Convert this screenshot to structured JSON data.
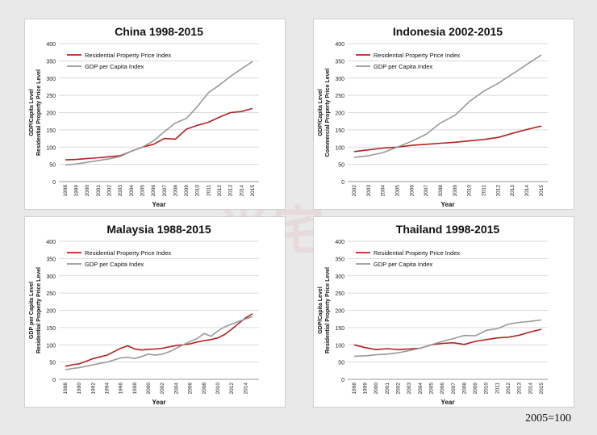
{
  "footnote": "2005=100",
  "watermark": "米宅",
  "colors": {
    "residential": "#b22222",
    "gdp": "#9a9a9a",
    "grid": "#cfcfcf"
  },
  "chart_data": [
    {
      "type": "line",
      "title": "China 1998-2015",
      "xlabel": "Year",
      "ylabel": [
        "GDP/Capita Level",
        "Residential Property Price Level"
      ],
      "x": [
        "1998",
        "1999",
        "2000",
        "2001",
        "2002",
        "2003",
        "2004",
        "2005",
        "2006",
        "2007",
        "2008",
        "2009",
        "2010",
        "2011",
        "2012",
        "2013",
        "2014",
        "2015"
      ],
      "ylim": [
        0,
        400
      ],
      "yticks": [
        0,
        50,
        100,
        150,
        200,
        250,
        300,
        350,
        400
      ],
      "legend": "top-left",
      "series": [
        {
          "name": "Residential Property Price Index",
          "color": "#b22222",
          "values": [
            63,
            64,
            67,
            69,
            72,
            75,
            88,
            100,
            108,
            125,
            123,
            152,
            163,
            172,
            187,
            200,
            203,
            212
          ]
        },
        {
          "name": "GDP per Capita Index",
          "color": "#9a9a9a",
          "values": [
            48,
            51,
            56,
            61,
            66,
            73,
            88,
            100,
            118,
            145,
            170,
            183,
            218,
            258,
            280,
            305,
            327,
            348
          ]
        }
      ]
    },
    {
      "type": "line",
      "title": "Indonesia 2002-2015",
      "xlabel": "Year",
      "ylabel": [
        "GDP/Capita Level",
        "Commercial Property Price Level"
      ],
      "x": [
        "2002",
        "2003",
        "2004",
        "2005",
        "2006",
        "2007",
        "2008",
        "2009",
        "2010",
        "2011",
        "2012",
        "2013",
        "2014",
        "2015"
      ],
      "ylim": [
        0,
        400
      ],
      "yticks": [
        0,
        50,
        100,
        150,
        200,
        250,
        300,
        350,
        400
      ],
      "legend": "top-left",
      "series": [
        {
          "name": "Residential Property Price Index",
          "color": "#b22222",
          "values": [
            87,
            92,
            97,
            100,
            105,
            108,
            111,
            114,
            118,
            122,
            128,
            140,
            151,
            161
          ]
        },
        {
          "name": "GDP per Capita Index",
          "color": "#9a9a9a",
          "values": [
            70,
            75,
            84,
            100,
            117,
            137,
            170,
            192,
            232,
            262,
            285,
            312,
            340,
            367
          ]
        }
      ]
    },
    {
      "type": "line",
      "title": "Malaysia 1988-2015",
      "xlabel": "Year",
      "ylabel": [
        "GDP per Capita Level",
        "Residential Property Price Level"
      ],
      "x": [
        "1988",
        "1989",
        "1990",
        "1991",
        "1992",
        "1993",
        "1994",
        "1995",
        "1996",
        "1997",
        "1998",
        "1999",
        "2000",
        "2001",
        "2002",
        "2003",
        "2004",
        "2005",
        "2006",
        "2007",
        "2008",
        "2009",
        "2010",
        "2011",
        "2012",
        "2013",
        "2014",
        "2015"
      ],
      "xticks": [
        "1988",
        "1990",
        "1992",
        "1994",
        "1996",
        "1998",
        "2000",
        "2002",
        "2004",
        "2006",
        "2008",
        "2010",
        "2012",
        "2014"
      ],
      "ylim": [
        0,
        400
      ],
      "yticks": [
        0,
        50,
        100,
        150,
        200,
        250,
        300,
        350,
        400
      ],
      "legend": "top-left",
      "series": [
        {
          "name": "Residential Property Price Index",
          "color": "#b22222",
          "values": [
            38,
            42,
            45,
            52,
            60,
            65,
            70,
            80,
            90,
            97,
            88,
            85,
            87,
            88,
            90,
            94,
            98,
            100,
            103,
            108,
            112,
            115,
            120,
            130,
            145,
            162,
            178,
            190
          ]
        },
        {
          "name": "GDP per Capita Index",
          "color": "#9a9a9a",
          "values": [
            28,
            31,
            34,
            38,
            42,
            46,
            50,
            56,
            62,
            64,
            60,
            66,
            73,
            70,
            73,
            80,
            90,
            100,
            110,
            118,
            133,
            125,
            140,
            152,
            160,
            168,
            175,
            182
          ]
        }
      ]
    },
    {
      "type": "line",
      "title": "Thailand 1998-2015",
      "xlabel": "Year",
      "ylabel": [
        "GDP/Capita Level",
        "Residential Property Price Level"
      ],
      "x": [
        "1998",
        "1999",
        "2000",
        "2001",
        "2002",
        "2003",
        "2004",
        "2005",
        "2006",
        "2007",
        "2008",
        "2009",
        "2010",
        "2011",
        "2012",
        "2013",
        "2014",
        "2015"
      ],
      "ylim": [
        0,
        400
      ],
      "yticks": [
        0,
        50,
        100,
        150,
        200,
        250,
        300,
        350,
        400
      ],
      "legend": "top-left",
      "series": [
        {
          "name": "Residential Property Price Index",
          "color": "#b22222",
          "values": [
            100,
            92,
            86,
            89,
            86,
            88,
            90,
            100,
            104,
            106,
            101,
            110,
            115,
            120,
            122,
            128,
            137,
            145
          ]
        },
        {
          "name": "GDP per Capita Index",
          "color": "#9a9a9a",
          "values": [
            67,
            68,
            71,
            73,
            77,
            83,
            90,
            100,
            110,
            118,
            127,
            126,
            142,
            147,
            160,
            165,
            168,
            172
          ]
        }
      ]
    }
  ]
}
